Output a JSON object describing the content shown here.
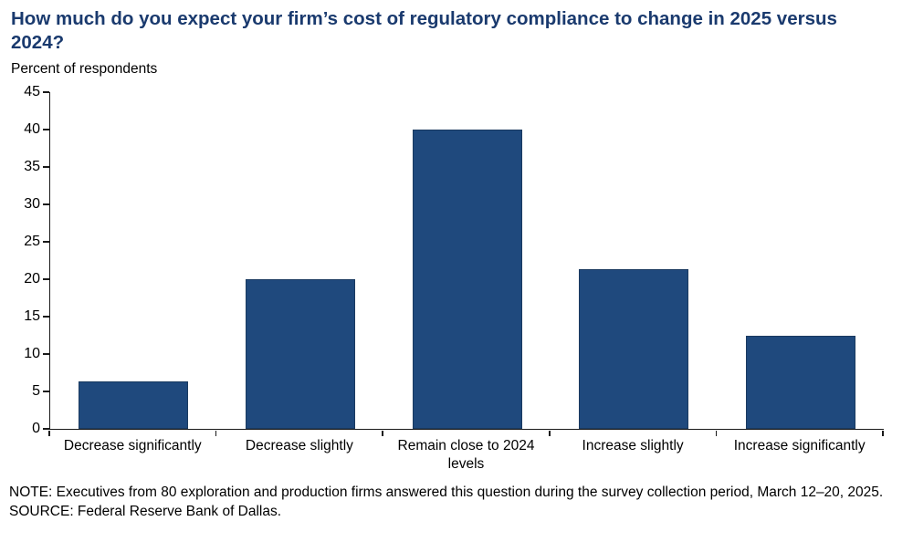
{
  "header": {
    "title": "How much do you expect your firm’s cost of regulatory compliance to change in 2025 versus 2024?",
    "subtitle": "Percent of respondents"
  },
  "chart_data": {
    "type": "bar",
    "title": "How much do you expect your firm’s cost of regulatory compliance to change in 2025 versus 2024?",
    "ylabel": "Percent of respondents",
    "xlabel": "",
    "categories": [
      "Decrease significantly",
      "Decrease slightly",
      "Remain close to 2024 levels",
      "Increase slightly",
      "Increase significantly"
    ],
    "values": [
      6.3,
      20,
      40,
      21.3,
      12.5
    ],
    "ylim": [
      0,
      45
    ],
    "ytick_step": 5,
    "grid": false,
    "legend": "none",
    "bar_color": "#1F497D",
    "bar_border_color": "#1A3A60"
  },
  "footer": {
    "note": "NOTE: Executives from 80 exploration and production firms answered this question during the survey collection period, March 12–20, 2025.",
    "source": "SOURCE: Federal Reserve Bank of Dallas."
  },
  "colors": {
    "title_text": "#1A3A6E",
    "body_text": "#000000",
    "axis": "#1A1A1A",
    "background": "#FFFFFF"
  }
}
